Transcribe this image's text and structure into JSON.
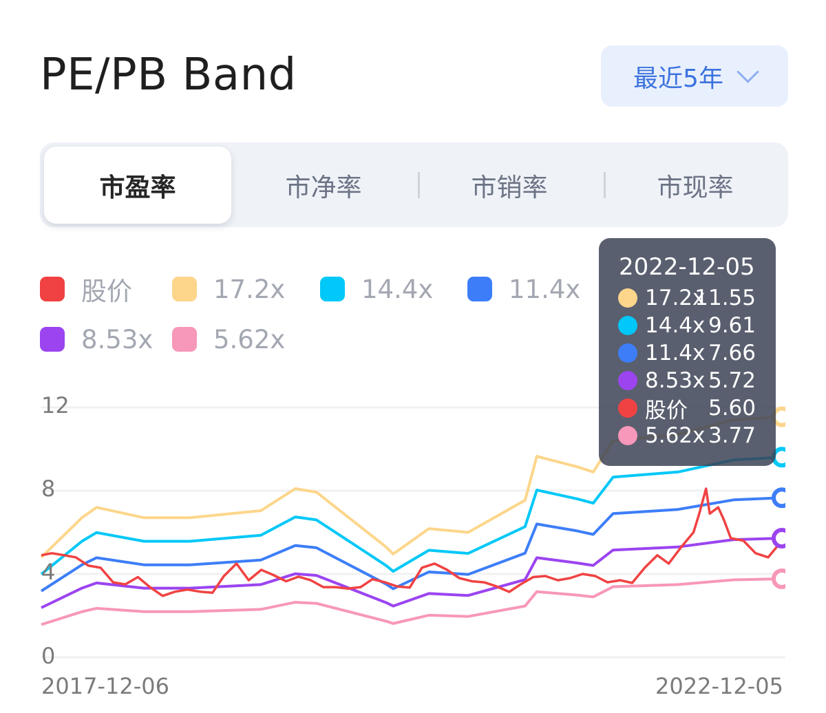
{
  "header": {
    "title": "PE/PB Band",
    "range_label": "最近5年"
  },
  "tabs": [
    {
      "label": "市盈率",
      "active": true
    },
    {
      "label": "市净率",
      "active": false
    },
    {
      "label": "市销率",
      "active": false
    },
    {
      "label": "市现率",
      "active": false
    }
  ],
  "legend": [
    {
      "label": "股价",
      "color": "#f04242"
    },
    {
      "label": "17.2x",
      "color": "#fdd68b"
    },
    {
      "label": "14.4x",
      "color": "#00c8f8"
    },
    {
      "label": "11.4x",
      "color": "#3d7ef8"
    },
    {
      "label": "8.53x",
      "color": "#9b44f0"
    },
    {
      "label": "5.62x",
      "color": "#f797b9"
    }
  ],
  "tooltip": {
    "date": "2022-12-05",
    "rows": [
      {
        "label": "17.2x",
        "value": "11.55",
        "color": "#fdd68b"
      },
      {
        "label": "14.4x",
        "value": "9.61",
        "color": "#00c8f8"
      },
      {
        "label": "11.4x",
        "value": "7.66",
        "color": "#3d7ef8"
      },
      {
        "label": "8.53x",
        "value": "5.72",
        "color": "#9b44f0"
      },
      {
        "label": "股价",
        "value": "5.60",
        "color": "#f04242"
      },
      {
        "label": "5.62x",
        "value": "3.77",
        "color": "#f797b9"
      }
    ]
  },
  "chart_data": {
    "type": "line",
    "title": "",
    "xlabel": "",
    "ylabel": "",
    "xlim": [
      "2017-12-06",
      "2022-12-05"
    ],
    "ylim": [
      0,
      12
    ],
    "x_tick_labels": [
      "2017-12-06",
      "2022-12-05"
    ],
    "y_ticks": [
      0,
      4,
      8,
      12
    ],
    "y_tick_labels": [
      "0",
      "4",
      "8",
      "12"
    ],
    "grid": "horizontal",
    "legend_position": "top-left",
    "band_dates": [
      "2017-12-06",
      "2018-03-16",
      "2018-04-21",
      "2018-08-16",
      "2018-12-07",
      "2019-05-31",
      "2019-08-24",
      "2019-10-15",
      "2020-04-04",
      "2020-04-21",
      "2020-07-18",
      "2020-10-23",
      "2021-03-12",
      "2021-04-10",
      "2021-07-18",
      "2021-08-27",
      "2021-10-15",
      "2022-03-24",
      "2022-08-08",
      "2022-12-05"
    ],
    "series": [
      {
        "name": "17.2x",
        "color": "#fdd68b",
        "values": [
          4.8,
          6.7,
          7.2,
          6.7,
          6.7,
          7.04,
          8.1,
          7.93,
          5.29,
          4.96,
          6.18,
          6.0,
          7.54,
          9.65,
          9.15,
          8.9,
          10.4,
          10.7,
          11.4,
          11.55
        ]
      },
      {
        "name": "14.4x",
        "color": "#00c8f8",
        "values": [
          3.99,
          5.57,
          5.99,
          5.57,
          5.57,
          5.86,
          6.74,
          6.6,
          4.4,
          4.13,
          5.14,
          4.99,
          6.27,
          8.03,
          7.61,
          7.4,
          8.65,
          8.9,
          9.48,
          9.61
        ]
      },
      {
        "name": "11.4x",
        "color": "#3d7ef8",
        "values": [
          3.18,
          4.44,
          4.78,
          4.44,
          4.44,
          4.67,
          5.37,
          5.26,
          3.51,
          3.29,
          4.1,
          3.98,
          5.0,
          6.4,
          6.07,
          5.9,
          6.9,
          7.1,
          7.56,
          7.66
        ]
      },
      {
        "name": "8.53x",
        "color": "#9b44f0",
        "values": [
          2.38,
          3.32,
          3.57,
          3.32,
          3.32,
          3.49,
          4.01,
          3.93,
          2.62,
          2.46,
          3.06,
          2.97,
          3.73,
          4.78,
          4.53,
          4.41,
          5.15,
          5.3,
          5.65,
          5.72
        ]
      },
      {
        "name": "5.62x",
        "color": "#f797b9",
        "values": [
          1.57,
          2.19,
          2.35,
          2.19,
          2.19,
          2.3,
          2.64,
          2.59,
          1.73,
          1.62,
          2.02,
          1.96,
          2.46,
          3.15,
          2.99,
          2.9,
          3.39,
          3.49,
          3.72,
          3.77
        ]
      }
    ],
    "price": {
      "name": "股价",
      "color": "#f04242",
      "dates": [
        "2017-12-06",
        "2018-01-01",
        "2018-02-01",
        "2018-03-01",
        "2018-04-01",
        "2018-05-01",
        "2018-06-01",
        "2018-07-01",
        "2018-08-01",
        "2018-09-01",
        "2018-10-01",
        "2018-11-01",
        "2018-12-01",
        "2019-01-01",
        "2019-02-01",
        "2019-03-01",
        "2019-04-01",
        "2019-05-01",
        "2019-06-01",
        "2019-07-01",
        "2019-08-01",
        "2019-09-01",
        "2019-10-01",
        "2019-11-01",
        "2019-12-01",
        "2020-01-01",
        "2020-02-01",
        "2020-03-01",
        "2020-04-01",
        "2020-05-01",
        "2020-06-01",
        "2020-07-01",
        "2020-08-01",
        "2020-09-01",
        "2020-10-01",
        "2020-11-01",
        "2020-12-01",
        "2021-01-01",
        "2021-02-01",
        "2021-03-01",
        "2021-04-01",
        "2021-05-01",
        "2021-06-01",
        "2021-07-01",
        "2021-08-01",
        "2021-09-01",
        "2021-10-01",
        "2021-11-01",
        "2021-12-01",
        "2022-01-01",
        "2022-02-01",
        "2022-03-01",
        "2022-04-01",
        "2022-05-01",
        "2022-05-15",
        "2022-06-01",
        "2022-06-10",
        "2022-07-01",
        "2022-07-15",
        "2022-08-01",
        "2022-09-01",
        "2022-10-01",
        "2022-11-01",
        "2022-12-05"
      ],
      "values": [
        4.9,
        5.0,
        4.9,
        4.8,
        4.4,
        4.3,
        3.6,
        3.5,
        3.85,
        3.35,
        2.95,
        3.15,
        3.25,
        3.15,
        3.1,
        3.9,
        4.5,
        3.7,
        4.2,
        3.95,
        3.65,
        3.87,
        3.7,
        3.37,
        3.37,
        3.3,
        3.37,
        3.75,
        3.6,
        3.4,
        3.35,
        4.3,
        4.5,
        4.2,
        3.8,
        3.65,
        3.6,
        3.4,
        3.14,
        3.5,
        3.85,
        3.9,
        3.7,
        3.8,
        4.0,
        3.9,
        3.6,
        3.7,
        3.57,
        4.3,
        4.9,
        4.5,
        5.3,
        6.0,
        6.88,
        8.1,
        6.9,
        7.2,
        6.6,
        5.72,
        5.6,
        5.0,
        4.8,
        5.6
      ]
    }
  }
}
